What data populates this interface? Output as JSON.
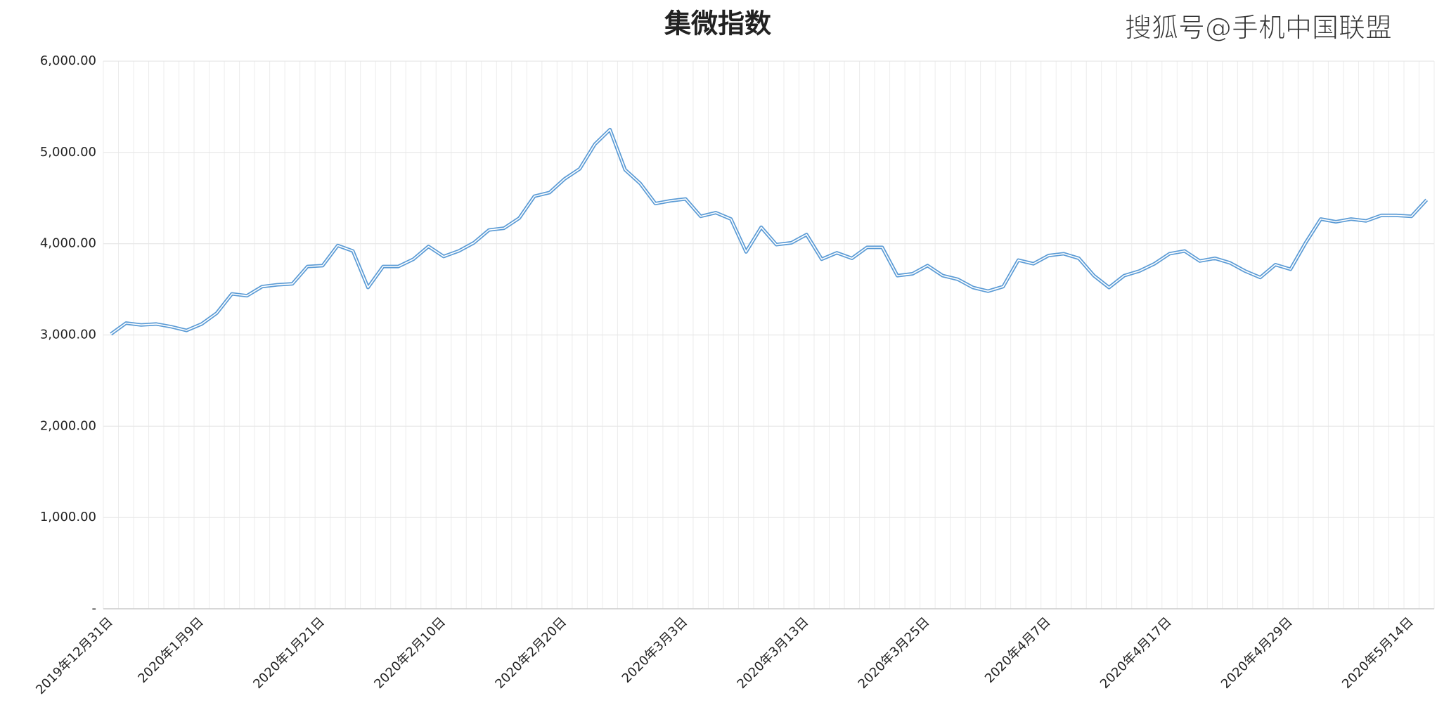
{
  "chart_data": {
    "type": "line",
    "title": "集微指数",
    "watermark_text": "搜狐号@手机中国联盟",
    "categories": [
      "2019年12月31日",
      null,
      null,
      null,
      null,
      null,
      "2020年1月9日",
      null,
      null,
      null,
      null,
      null,
      null,
      null,
      "2020年1月21日",
      null,
      null,
      null,
      null,
      null,
      null,
      null,
      "2020年2月10日",
      null,
      null,
      null,
      null,
      null,
      null,
      null,
      "2020年2月20日",
      null,
      null,
      null,
      null,
      null,
      null,
      null,
      "2020年3月3日",
      null,
      null,
      null,
      null,
      null,
      null,
      null,
      "2020年3月13日",
      null,
      null,
      null,
      null,
      null,
      null,
      null,
      "2020年3月25日",
      null,
      null,
      null,
      null,
      null,
      null,
      null,
      "2020年4月7日",
      null,
      null,
      null,
      null,
      null,
      null,
      null,
      "2020年4月17日",
      null,
      null,
      null,
      null,
      null,
      null,
      null,
      "2020年4月29日",
      null,
      null,
      null,
      null,
      null,
      null,
      null,
      "2020年5月14日",
      null
    ],
    "series": [
      {
        "name": "集微指数",
        "color": "#5b9bd5",
        "values": [
          3010,
          3130,
          3110,
          3120,
          3090,
          3050,
          3120,
          3240,
          3450,
          3430,
          3530,
          3550,
          3560,
          3750,
          3760,
          3980,
          3920,
          3520,
          3750,
          3750,
          3830,
          3970,
          3860,
          3920,
          4010,
          4150,
          4170,
          4280,
          4520,
          4560,
          4710,
          4820,
          5090,
          5250,
          4810,
          4660,
          4440,
          4470,
          4490,
          4300,
          4340,
          4270,
          3910,
          4180,
          3990,
          4010,
          4100,
          3830,
          3900,
          3840,
          3960,
          3960,
          3650,
          3670,
          3760,
          3650,
          3610,
          3520,
          3480,
          3530,
          3820,
          3780,
          3870,
          3890,
          3840,
          3650,
          3520,
          3650,
          3700,
          3780,
          3890,
          3920,
          3810,
          3840,
          3790,
          3700,
          3630,
          3770,
          3720,
          4010,
          4270,
          4240,
          4270,
          4250,
          4310,
          4310,
          4300,
          4480
        ]
      }
    ],
    "ylim": [
      0,
      6000
    ],
    "yticks": [
      {
        "value": 0,
        "label": "-"
      },
      {
        "value": 1000,
        "label": "1,000.00"
      },
      {
        "value": 2000,
        "label": "2,000.00"
      },
      {
        "value": 3000,
        "label": "3,000.00"
      },
      {
        "value": 4000,
        "label": "4,000.00"
      },
      {
        "value": 5000,
        "label": "5,000.00"
      },
      {
        "value": 6000,
        "label": "6,000.00"
      }
    ],
    "grid": true
  }
}
